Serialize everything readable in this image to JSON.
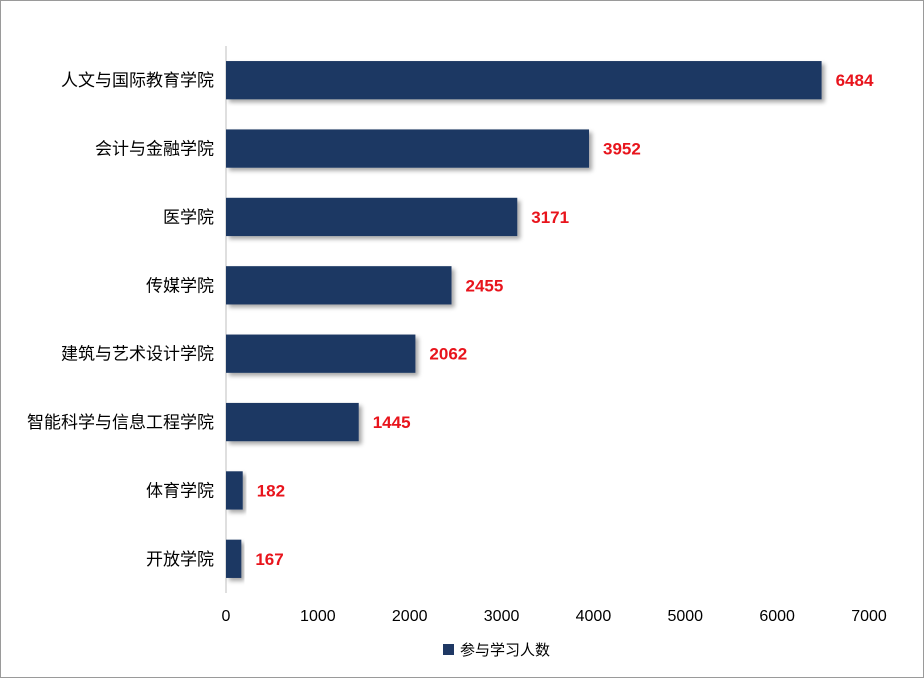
{
  "chart_data": {
    "type": "bar",
    "orientation": "horizontal",
    "categories": [
      "人文与国际教育学院",
      "会计与金融学院",
      "医学院",
      "传媒学院",
      "建筑与艺术设计学院",
      "智能科学与信息工程学院",
      "体育学院",
      "开放学院"
    ],
    "series": [
      {
        "name": "参与学习人数",
        "values": [
          6484,
          3952,
          3171,
          2455,
          2062,
          1445,
          182,
          167
        ]
      }
    ],
    "xlim": [
      0,
      7000
    ],
    "xticks": [
      "0",
      "1000",
      "2000",
      "3000",
      "4000",
      "5000",
      "6000",
      "7000"
    ],
    "data_labels": [
      "6484",
      "3952",
      "3171",
      "2455",
      "2062",
      "1445",
      "182",
      "167"
    ],
    "grid": false,
    "legend_position": "bottom",
    "bar_color": "#1f3864",
    "label_color": "#e8141c"
  }
}
